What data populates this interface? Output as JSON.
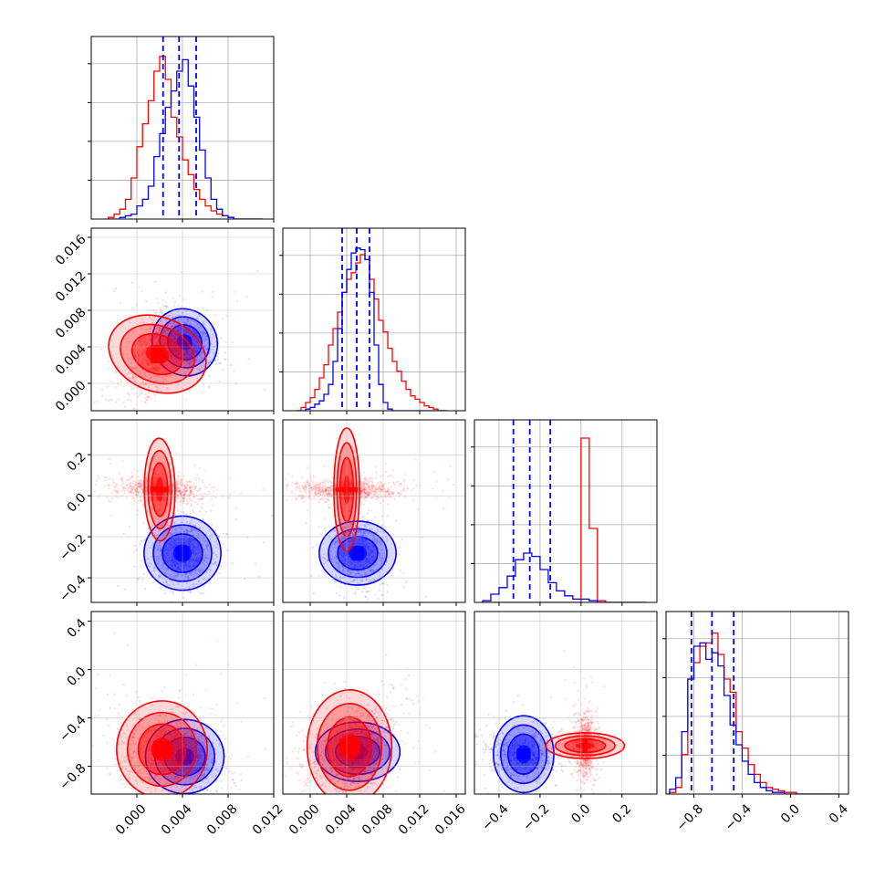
{
  "chart_data": {
    "type": "corner",
    "colors": {
      "series_a": "#ff0000",
      "series_b": "#0000ff",
      "grid": "#b0b0b0"
    },
    "series": [
      {
        "color": "red",
        "hist_style": "step",
        "contour_style": "filled-red"
      },
      {
        "color": "blue",
        "hist_style": "step",
        "contour_style": "filled-blue",
        "quantile_lines": "dashed"
      }
    ],
    "parameters": [
      {
        "range": [
          -0.004,
          0.012
        ],
        "ticks": [
          0.0,
          0.004,
          0.008,
          0.012
        ],
        "tick_labels": [
          "0.000",
          "0.004",
          "0.008",
          "0.012"
        ]
      },
      {
        "range": [
          -0.003,
          0.017
        ],
        "ticks": [
          0.0,
          0.004,
          0.008,
          0.012,
          0.016
        ],
        "tick_labels": [
          "0.000",
          "0.004",
          "0.008",
          "0.012",
          "0.016"
        ]
      },
      {
        "range": [
          -0.52,
          0.37
        ],
        "ticks": [
          -0.4,
          -0.2,
          0.0,
          0.2
        ],
        "tick_labels": [
          "−0.4",
          "−0.2",
          "0.0",
          "0.2"
        ]
      },
      {
        "range": [
          -1.03,
          0.48
        ],
        "ticks": [
          -0.8,
          -0.4,
          0.0,
          0.4
        ],
        "tick_labels": [
          "−0.8",
          "−0.4",
          "0.0",
          "0.4"
        ]
      }
    ],
    "histograms": [
      {
        "param": 0,
        "bins": [
          -0.0025,
          -0.002,
          -0.0015,
          -0.001,
          -0.0005,
          0.0,
          0.0005,
          0.001,
          0.0015,
          0.002,
          0.0025,
          0.003,
          0.0035,
          0.004,
          0.0045,
          0.005,
          0.0055,
          0.006,
          0.0065,
          0.007,
          0.0075,
          0.008,
          0.0085,
          0.009,
          0.0095,
          0.01,
          0.0105,
          0.011
        ],
        "red": [
          0.01,
          0.03,
          0.06,
          0.12,
          0.25,
          0.44,
          0.58,
          0.72,
          0.9,
          0.99,
          0.85,
          0.62,
          0.5,
          0.36,
          0.27,
          0.18,
          0.12,
          0.08,
          0.05,
          0.03,
          0.02,
          0.01,
          0.0,
          0.0,
          0.0,
          0.0,
          0.0
        ],
        "blue": [
          0.0,
          0.0,
          0.01,
          0.02,
          0.03,
          0.08,
          0.12,
          0.2,
          0.38,
          0.52,
          0.68,
          0.78,
          0.9,
          0.97,
          0.81,
          0.62,
          0.42,
          0.25,
          0.12,
          0.06,
          0.02,
          0.01,
          0.0,
          0.0,
          0.0,
          0.0,
          0.0
        ],
        "quantiles_blue": [
          0.0023,
          0.0037,
          0.0052
        ]
      },
      {
        "param": 1,
        "bins": [
          -0.0015,
          -0.001,
          -0.0005,
          0.0,
          0.0005,
          0.001,
          0.0015,
          0.002,
          0.0025,
          0.003,
          0.0035,
          0.004,
          0.0045,
          0.005,
          0.0055,
          0.006,
          0.0065,
          0.007,
          0.0075,
          0.008,
          0.0085,
          0.009,
          0.0095,
          0.01,
          0.0105,
          0.011,
          0.0115,
          0.012,
          0.0125,
          0.013,
          0.0135,
          0.014,
          0.0145,
          0.015
        ],
        "red": [
          0.0,
          0.02,
          0.05,
          0.08,
          0.13,
          0.2,
          0.28,
          0.4,
          0.5,
          0.6,
          0.72,
          0.8,
          0.84,
          0.9,
          0.95,
          0.92,
          0.8,
          0.68,
          0.55,
          0.48,
          0.38,
          0.3,
          0.24,
          0.18,
          0.13,
          0.09,
          0.07,
          0.05,
          0.03,
          0.02,
          0.01,
          0.0,
          0.0
        ],
        "blue": [
          0.0,
          0.0,
          0.01,
          0.02,
          0.04,
          0.06,
          0.1,
          0.16,
          0.3,
          0.5,
          0.72,
          0.86,
          0.96,
          0.99,
          0.98,
          0.92,
          0.72,
          0.4,
          0.16,
          0.05,
          0.01,
          0.0,
          0.0,
          0.0,
          0.0,
          0.0,
          0.0,
          0.0,
          0.0,
          0.0,
          0.0,
          0.0,
          0.0
        ],
        "quantiles_blue": [
          0.0035,
          0.0051,
          0.0065
        ]
      },
      {
        "param": 2,
        "bins": [
          -0.48,
          -0.44,
          -0.4,
          -0.36,
          -0.32,
          -0.28,
          -0.24,
          -0.2,
          -0.16,
          -0.12,
          -0.08,
          -0.04,
          0.0,
          0.04,
          0.08,
          0.12,
          0.16,
          0.2,
          0.24,
          0.28,
          0.32
        ],
        "red": [
          0.0,
          0.0,
          0.0,
          0.0,
          0.0,
          0.0,
          0.0,
          0.0,
          0.0,
          0.0,
          0.0,
          0.0,
          1.0,
          0.45,
          0.01,
          0.0,
          0.0,
          0.0,
          0.0,
          0.0
        ],
        "blue": [
          0.01,
          0.05,
          0.09,
          0.16,
          0.26,
          0.3,
          0.28,
          0.2,
          0.12,
          0.07,
          0.04,
          0.02,
          0.02,
          0.01,
          0.0,
          0.0,
          0.0,
          0.0,
          0.0,
          0.0
        ],
        "quantiles_blue": [
          -0.33,
          -0.25,
          -0.15
        ]
      },
      {
        "param": 3,
        "bins": [
          -1.0,
          -0.95,
          -0.9,
          -0.85,
          -0.8,
          -0.75,
          -0.7,
          -0.65,
          -0.6,
          -0.55,
          -0.5,
          -0.45,
          -0.4,
          -0.35,
          -0.3,
          -0.25,
          -0.2,
          -0.15,
          -0.1,
          -0.05,
          0.0,
          0.05,
          0.1,
          0.15,
          0.2,
          0.25,
          0.3,
          0.35,
          0.4
        ],
        "red": [
          0.01,
          0.04,
          0.24,
          0.7,
          0.8,
          0.9,
          0.92,
          0.98,
          0.85,
          0.7,
          0.62,
          0.38,
          0.28,
          0.18,
          0.12,
          0.07,
          0.04,
          0.03,
          0.02,
          0.01,
          0.01,
          0.0,
          0.0,
          0.0,
          0.0,
          0.0,
          0.0,
          0.0
        ],
        "blue": [
          0.03,
          0.1,
          0.38,
          0.7,
          0.9,
          0.92,
          0.82,
          0.86,
          0.78,
          0.6,
          0.42,
          0.3,
          0.2,
          0.12,
          0.07,
          0.04,
          0.02,
          0.01,
          0.01,
          0.0,
          0.0,
          0.0,
          0.0,
          0.0,
          0.0,
          0.0,
          0.0,
          0.0
        ],
        "quantiles_blue": [
          -0.82,
          -0.65,
          -0.47
        ]
      }
    ],
    "pairs": [
      {
        "x": 0,
        "y": 1,
        "red": {
          "center": [
            0.0018,
            0.0032
          ],
          "sd": [
            0.0013,
            0.0022
          ],
          "rho": 0.5
        },
        "blue": {
          "center": [
            0.0042,
            0.0045
          ],
          "sd": [
            0.0012,
            0.0014
          ],
          "rho": -0.4
        }
      },
      {
        "x": 0,
        "y": 2,
        "red": {
          "center": [
            0.002,
            0.03
          ],
          "sd": [
            0.0018,
            0.03
          ],
          "rho": -0.2
        },
        "blue": {
          "center": [
            0.004,
            -0.28
          ],
          "sd": [
            0.0013,
            0.075
          ],
          "rho": 0.0
        }
      },
      {
        "x": 1,
        "y": 2,
        "red": {
          "center": [
            0.004,
            0.03
          ],
          "sd": [
            0.0027,
            0.025
          ],
          "rho": 0.0
        },
        "blue": {
          "center": [
            0.0052,
            -0.28
          ],
          "sd": [
            0.0014,
            0.075
          ],
          "rho": 0.0
        }
      },
      {
        "x": 0,
        "y": 3,
        "red": {
          "center": [
            0.0022,
            -0.66
          ],
          "sd": [
            0.0017,
            0.15
          ],
          "rho": 0.2
        },
        "blue": {
          "center": [
            0.0042,
            -0.72
          ],
          "sd": [
            0.0013,
            0.13
          ],
          "rho": -0.3
        }
      },
      {
        "x": 1,
        "y": 3,
        "red": {
          "center": [
            0.0043,
            -0.64
          ],
          "sd": [
            0.0025,
            0.14
          ],
          "rho": 0.4
        },
        "blue": {
          "center": [
            0.0052,
            -0.68
          ],
          "sd": [
            0.0013,
            0.14
          ],
          "rho": 0.5
        }
      },
      {
        "x": 2,
        "y": 3,
        "red": {
          "center": [
            0.02,
            -0.63
          ],
          "sd": [
            0.025,
            0.13
          ],
          "rho": 0.0
        },
        "blue": {
          "center": [
            -0.28,
            -0.7
          ],
          "sd": [
            0.075,
            0.1
          ],
          "rho": 0.0
        }
      }
    ],
    "grid": true,
    "legend": "none"
  }
}
